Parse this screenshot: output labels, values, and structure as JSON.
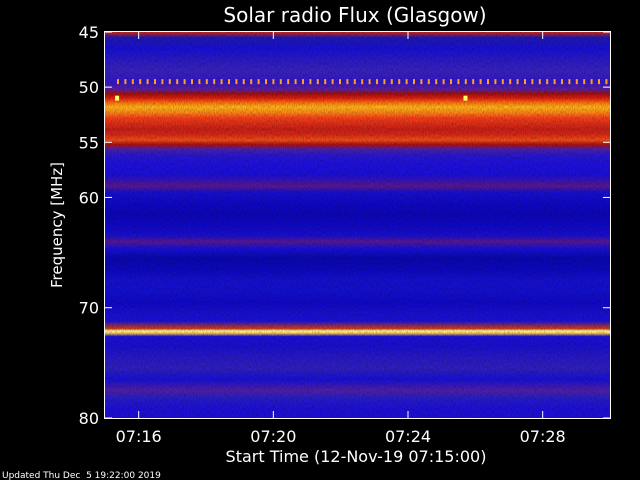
{
  "chart_data": {
    "type": "heatmap",
    "title": "Solar radio Flux (Glasgow)",
    "xlabel": "Start Time (12-Nov-19 07:15:00)",
    "ylabel": "Frequency [MHz]",
    "footer": "Updated Thu Dec  5 19:22:00 2019",
    "ylim": [
      45,
      80
    ],
    "x_tick_labels": [
      "07:16",
      "07:20",
      "07:24",
      "07:28"
    ],
    "x_tick_minutes": [
      1,
      5,
      9,
      13
    ],
    "x_range_minutes": [
      0,
      15
    ],
    "y_ticks": [
      {
        "value": 45,
        "label": "45"
      },
      {
        "value": 50,
        "label": "50"
      },
      {
        "value": 55,
        "label": "55"
      },
      {
        "value": 60,
        "label": "60"
      },
      {
        "value": 70,
        "label": "70"
      },
      {
        "value": 80,
        "label": "80"
      }
    ],
    "bands": [
      {
        "f": 45.0,
        "c": "#d02818"
      },
      {
        "f": 45.5,
        "c": "#2218b0"
      },
      {
        "f": 46.5,
        "c": "#1810d8"
      },
      {
        "f": 47.5,
        "c": "#2a1ac8"
      },
      {
        "f": 48.5,
        "c": "#3a22c0"
      },
      {
        "f": 49.5,
        "c": "#3218c8"
      },
      {
        "f": 50.2,
        "c": "#5a20a0"
      },
      {
        "f": 50.6,
        "c": "#a01010"
      },
      {
        "f": 51.0,
        "c": "#e02010"
      },
      {
        "f": 51.4,
        "c": "#ff7010"
      },
      {
        "f": 51.8,
        "c": "#ffb818"
      },
      {
        "f": 52.3,
        "c": "#ff8818"
      },
      {
        "f": 52.8,
        "c": "#f84018"
      },
      {
        "f": 53.3,
        "c": "#e03018"
      },
      {
        "f": 53.8,
        "c": "#c82018"
      },
      {
        "f": 54.3,
        "c": "#d82818"
      },
      {
        "f": 54.8,
        "c": "#f05018"
      },
      {
        "f": 55.2,
        "c": "#b01010"
      },
      {
        "f": 55.6,
        "c": "#5020a8"
      },
      {
        "f": 56.2,
        "c": "#2818d0"
      },
      {
        "f": 57.0,
        "c": "#2010e0"
      },
      {
        "f": 58.0,
        "c": "#1c10d8"
      },
      {
        "f": 59.0,
        "c": "#5a1890"
      },
      {
        "f": 59.5,
        "c": "#1810d0"
      },
      {
        "f": 60.5,
        "c": "#1008c8"
      },
      {
        "f": 61.5,
        "c": "#0c06b8"
      },
      {
        "f": 62.5,
        "c": "#1008c8"
      },
      {
        "f": 63.5,
        "c": "#1a10d0"
      },
      {
        "f": 64.0,
        "c": "#5a1890"
      },
      {
        "f": 64.6,
        "c": "#1a10d8"
      },
      {
        "f": 65.5,
        "c": "#0a08b0"
      },
      {
        "f": 66.5,
        "c": "#0c08c0"
      },
      {
        "f": 67.5,
        "c": "#1610d0"
      },
      {
        "f": 68.5,
        "c": "#1410d0"
      },
      {
        "f": 69.5,
        "c": "#1008c8"
      },
      {
        "f": 70.5,
        "c": "#1810d0"
      },
      {
        "f": 71.2,
        "c": "#1c10d8"
      },
      {
        "f": 71.9,
        "c": "#d04010"
      },
      {
        "f": 72.1,
        "c": "#fff8b0"
      },
      {
        "f": 72.3,
        "c": "#ffd040"
      },
      {
        "f": 72.6,
        "c": "#1c10d8"
      },
      {
        "f": 73.5,
        "c": "#1a10d0"
      },
      {
        "f": 74.5,
        "c": "#2a18c8"
      },
      {
        "f": 75.5,
        "c": "#3020c0"
      },
      {
        "f": 76.5,
        "c": "#1810d8"
      },
      {
        "f": 77.5,
        "c": "#5020a8"
      },
      {
        "f": 78.0,
        "c": "#3020c0"
      },
      {
        "f": 78.5,
        "c": "#2418d0"
      },
      {
        "f": 79.2,
        "c": "#1e10d8"
      },
      {
        "f": 80.0,
        "c": "#1e10d8"
      }
    ],
    "dots_freq": 49.5,
    "dots_color": "#ffa020",
    "bright_spots": [
      {
        "t": 0.15,
        "f": 51.0,
        "c": "#ffff60"
      },
      {
        "t": 10.5,
        "f": 51.0,
        "c": "#ffff60"
      }
    ]
  }
}
